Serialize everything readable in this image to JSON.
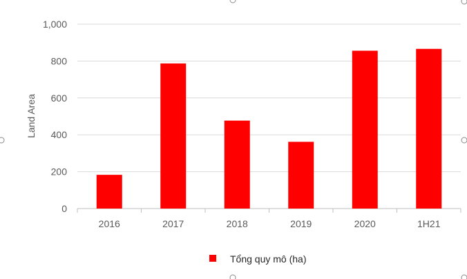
{
  "chart_data": {
    "type": "bar",
    "categories": [
      "2016",
      "2017",
      "2018",
      "2019",
      "2020",
      "1H21"
    ],
    "series": [
      {
        "name": "Tổng quy mô (ha)",
        "values": [
          183,
          787,
          477,
          362,
          856,
          866
        ],
        "color": "#ff0000"
      }
    ],
    "title": "",
    "xlabel": "",
    "ylabel": "Land Area",
    "ylim": [
      0,
      1000
    ],
    "yticks": [
      "0",
      "200",
      "400",
      "600",
      "800",
      "1,000"
    ],
    "grid": true,
    "legend_position": "bottom"
  }
}
